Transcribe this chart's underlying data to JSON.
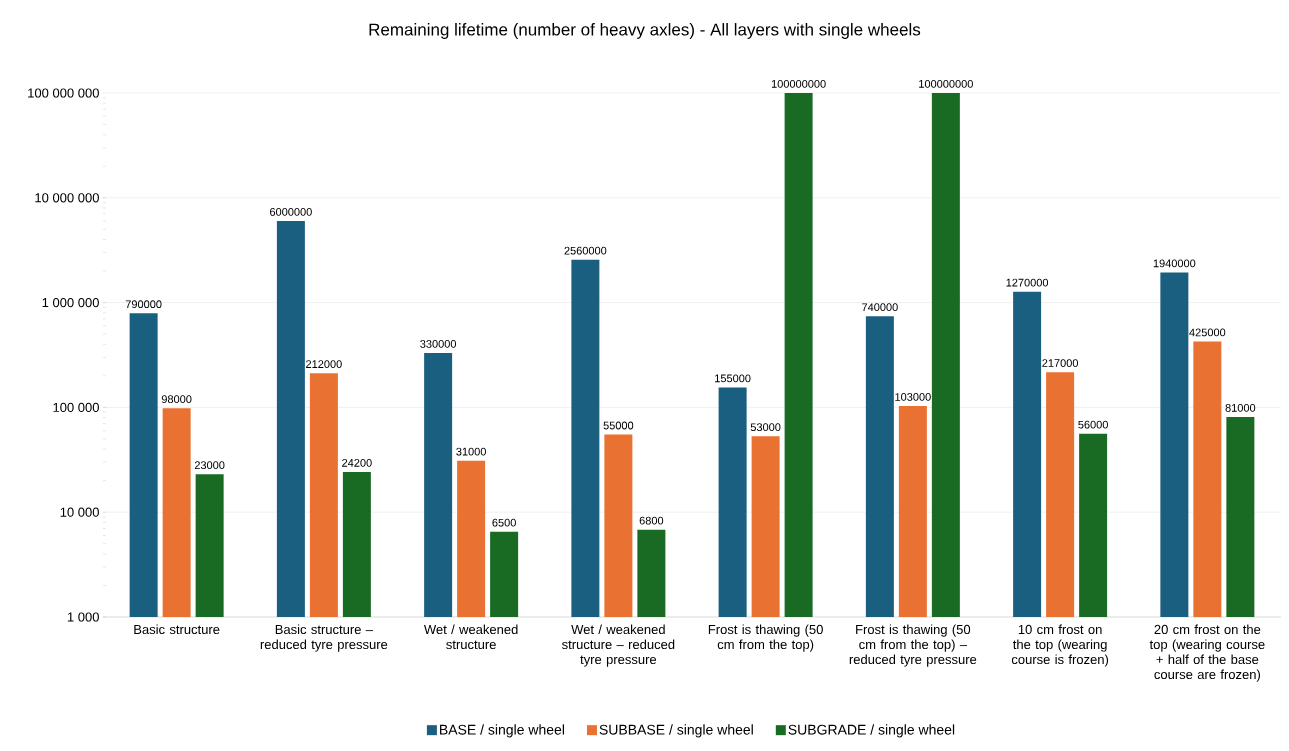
{
  "chart_data": {
    "type": "bar",
    "title": "Remaining lifetime (number of heavy axles) - All layers with single wheels",
    "categories": [
      "Basic structure",
      "Basic structure – reduced tyre pressure",
      "Wet / weakened structure",
      "Wet / weakened structure – reduced tyre pressure",
      "Frost is thawing (50 cm from the top)",
      "Frost is thawing (50 cm from the top) – reduced tyre pressure",
      "10 cm frost on the top (wearing course is frozen)",
      "20 cm frost on the top (wearing course + half of the base course are frozen)"
    ],
    "series": [
      {
        "name": "BASE / single wheel",
        "color": "#1a5e80",
        "values": [
          790000,
          6000000,
          330000,
          2560000,
          155000,
          740000,
          1270000,
          1940000
        ]
      },
      {
        "name": "SUBBASE / single wheel",
        "color": "#e97132",
        "values": [
          98000,
          212000,
          31000,
          55000,
          53000,
          103000,
          217000,
          425000
        ]
      },
      {
        "name": "SUBGRADE / single wheel",
        "color": "#196b24",
        "values": [
          23000,
          24200,
          6500,
          6800,
          100000000,
          100000000,
          56000,
          81000
        ]
      }
    ],
    "log": "y",
    "ylim": [
      1000,
      100000000
    ],
    "yticks": [
      {
        "value": 1000,
        "label": "1 000"
      },
      {
        "value": 10000,
        "label": "10 000"
      },
      {
        "value": 100000,
        "label": "100 000"
      },
      {
        "value": 1000000,
        "label": "1 000 000"
      },
      {
        "value": 10000000,
        "label": "10 000 000"
      },
      {
        "value": 100000000,
        "label": "100 000 000"
      }
    ],
    "grid": "y",
    "legend": "bottom",
    "data_labels": true
  }
}
